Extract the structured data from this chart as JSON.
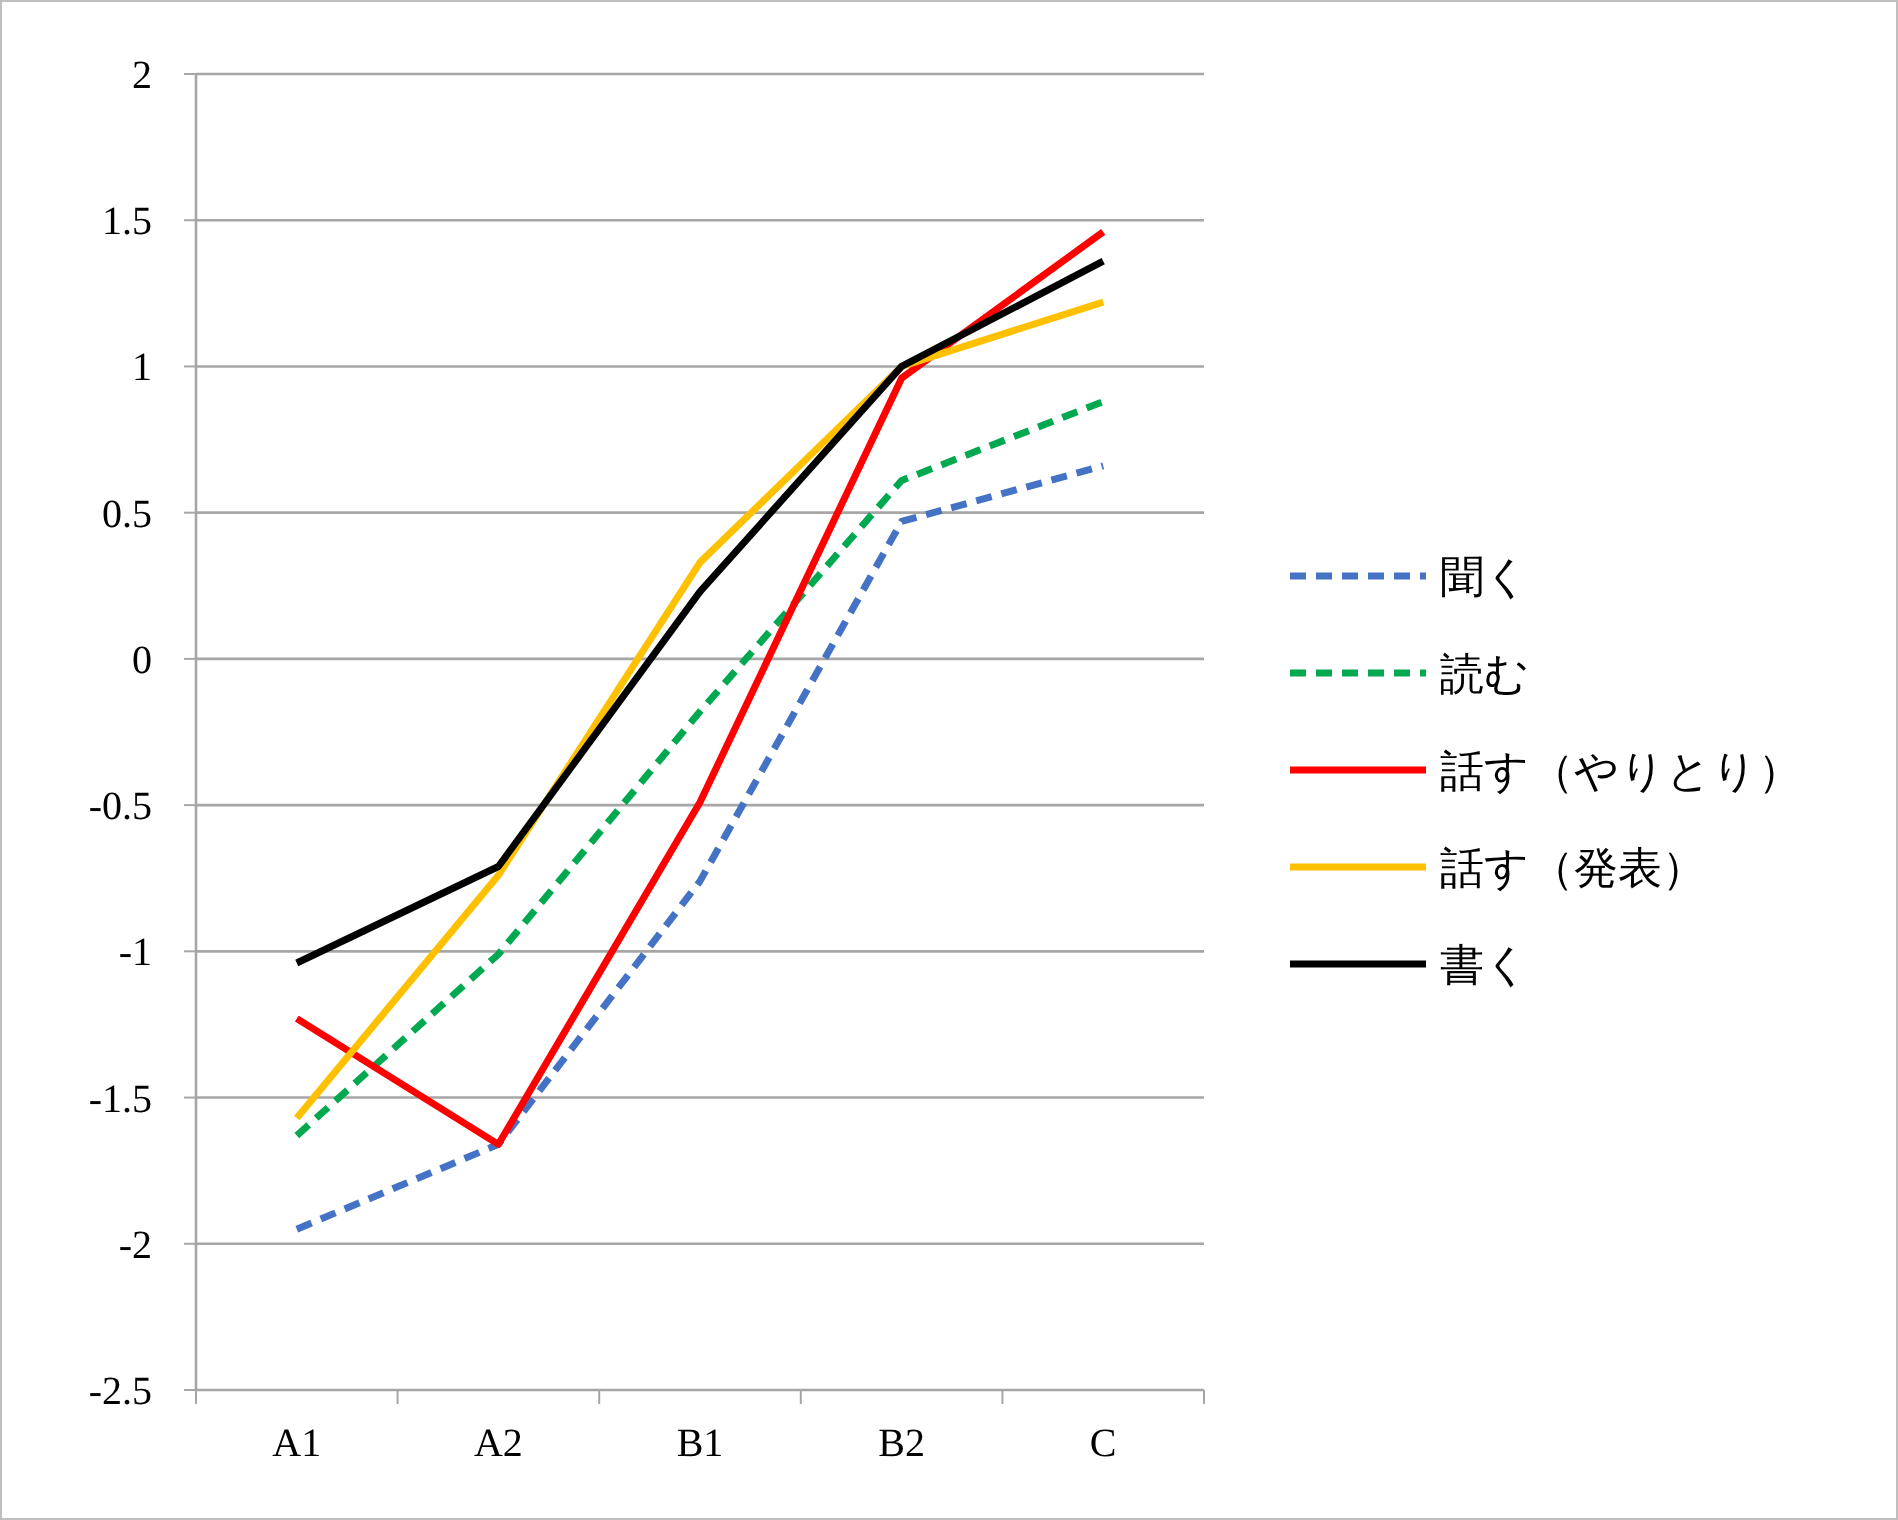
{
  "chart_data": {
    "type": "line",
    "categories": [
      "A1",
      "A2",
      "B1",
      "B2",
      "C"
    ],
    "series": [
      {
        "name": "聞く",
        "color": "#4472c4",
        "line_style": "dashed",
        "values": [
          -1.95,
          -1.66,
          -0.76,
          0.47,
          0.66
        ]
      },
      {
        "name": "読む",
        "color": "#00a850",
        "line_style": "dashed",
        "values": [
          -1.63,
          -1.01,
          -0.18,
          0.61,
          0.88
        ]
      },
      {
        "name": "話す（やりとり）",
        "color": "#ff0000",
        "line_style": "solid",
        "values": [
          -1.23,
          -1.66,
          -0.49,
          0.96,
          1.46
        ]
      },
      {
        "name": "話す（発表）",
        "color": "#ffc000",
        "line_style": "solid",
        "values": [
          -1.57,
          -0.74,
          0.33,
          1.0,
          1.22
        ]
      },
      {
        "name": "書く",
        "color": "#000000",
        "line_style": "solid",
        "values": [
          -1.04,
          -0.71,
          0.23,
          1.0,
          1.36
        ]
      }
    ],
    "ylim": [
      -2.5,
      2
    ],
    "yticks": [
      -2.5,
      -2,
      -1.5,
      -1,
      -0.5,
      0,
      0.5,
      1,
      1.5,
      2
    ],
    "grid": "y",
    "legend": "right"
  }
}
